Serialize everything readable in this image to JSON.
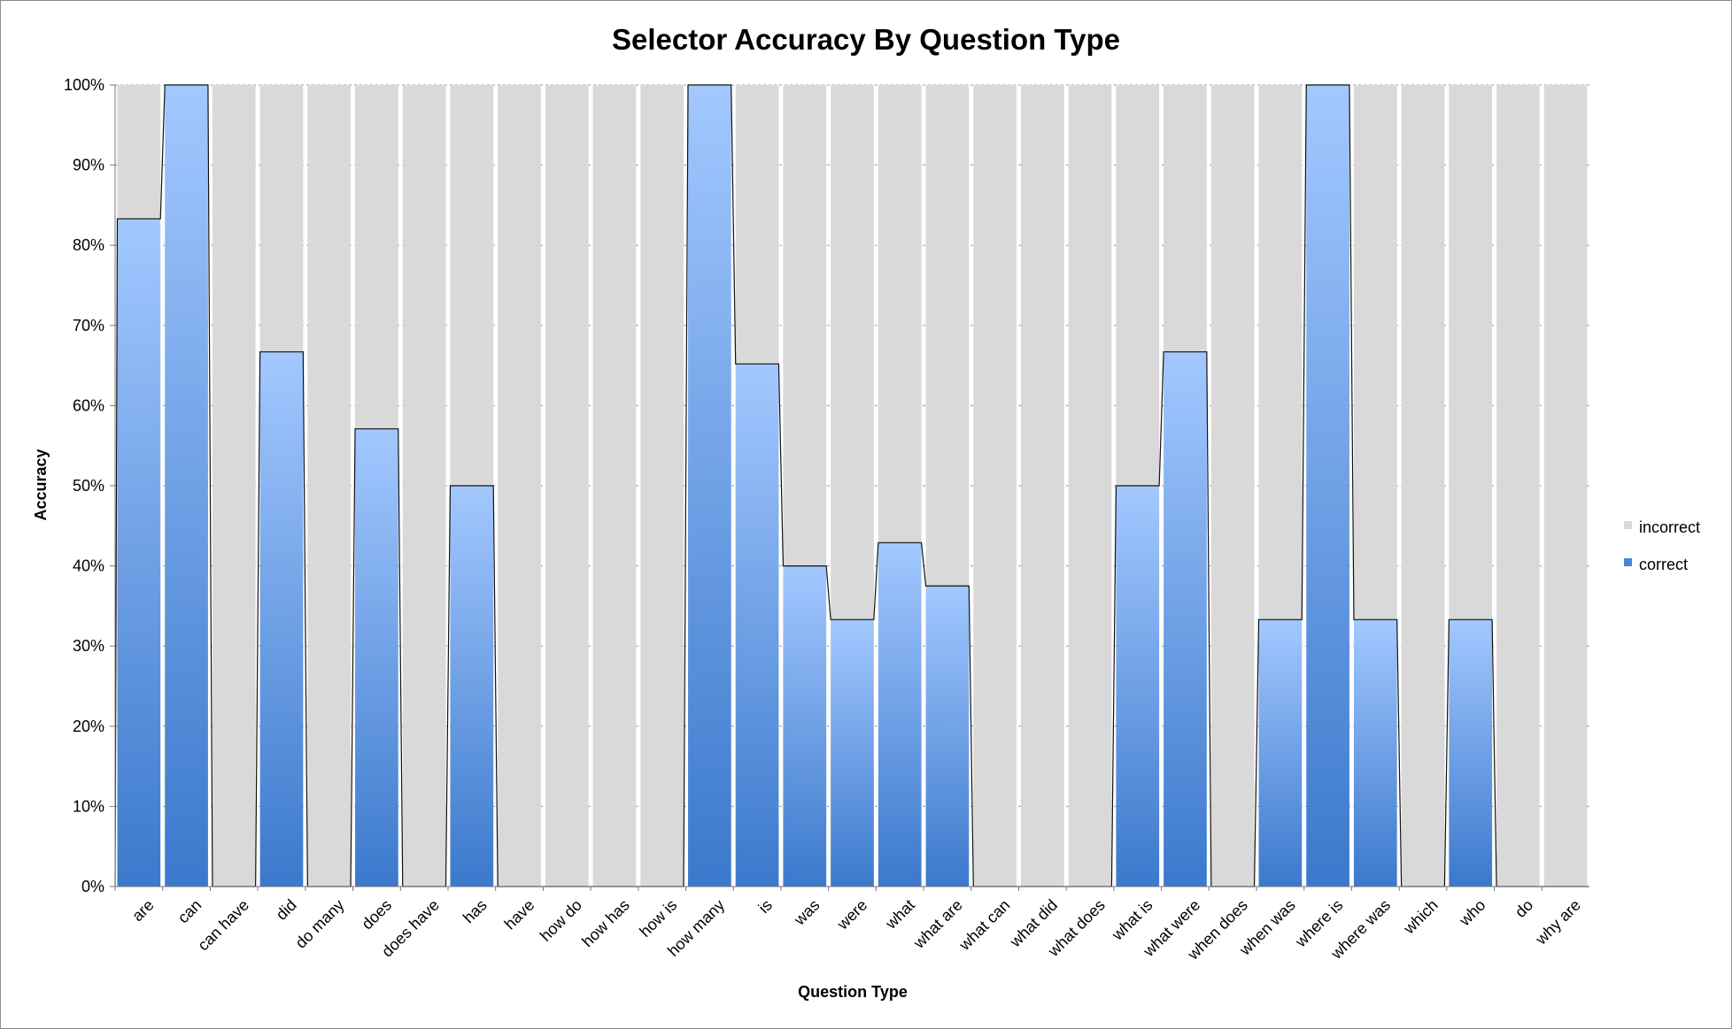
{
  "chart_data": {
    "type": "bar",
    "stacked": true,
    "normalized": true,
    "title": "Selector Accuracy By Question Type",
    "xlabel": "Question Type",
    "ylabel": "Accuracy",
    "ylim": [
      0,
      100
    ],
    "y_ticks": [
      "0%",
      "10%",
      "20%",
      "30%",
      "40%",
      "50%",
      "60%",
      "70%",
      "80%",
      "90%",
      "100%"
    ],
    "grid": true,
    "legend_position": "right",
    "categories": [
      "are",
      "can",
      "can have",
      "did",
      "do many",
      "does",
      "does have",
      "has",
      "have",
      "how do",
      "how has",
      "how is",
      "how many",
      "is",
      "was",
      "were",
      "what",
      "what are",
      "what can",
      "what did",
      "what does",
      "what is",
      "what were",
      "when does",
      "when was",
      "where is",
      "where was",
      "which",
      "who",
      "do",
      "why are"
    ],
    "series": [
      {
        "name": "incorrect",
        "color": "#d9d9d9",
        "values": [
          16.7,
          0,
          100,
          33.3,
          100,
          42.9,
          100,
          50,
          100,
          100,
          100,
          100,
          0,
          34.8,
          60,
          66.7,
          57.1,
          62.5,
          100,
          100,
          100,
          50,
          33.3,
          100,
          66.7,
          0,
          66.7,
          100,
          66.7,
          100,
          100
        ]
      },
      {
        "name": "correct",
        "color": "#4a86d8",
        "values": [
          83.3,
          100,
          0,
          66.7,
          0,
          57.1,
          0,
          50,
          0,
          0,
          0,
          0,
          100,
          65.2,
          40,
          33.3,
          42.9,
          37.5,
          0,
          0,
          0,
          50,
          66.7,
          0,
          33.3,
          100,
          33.3,
          0,
          33.3,
          0,
          0
        ]
      }
    ]
  }
}
